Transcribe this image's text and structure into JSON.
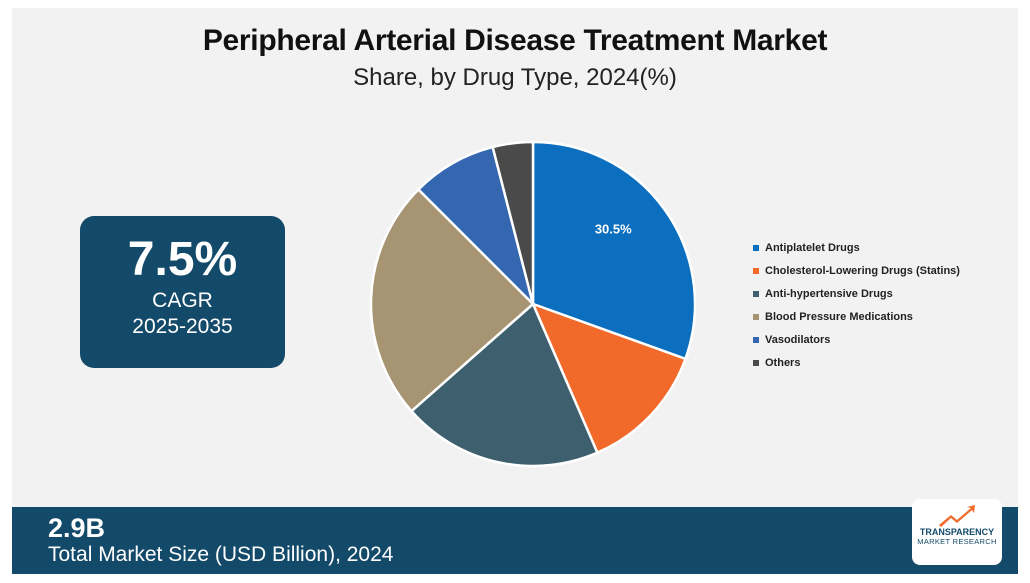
{
  "header": {
    "title": "Peripheral Arterial Disease Treatment Market",
    "subtitle": "Share, by Drug Type, 2024(%)"
  },
  "cagr": {
    "value": "7.5%",
    "label": "CAGR",
    "period": "2025-2035"
  },
  "footer": {
    "value": "2.9B",
    "label": "Total Market Size (USD Billion), 2024"
  },
  "logo": {
    "line1": "TRANSPARENCY",
    "line2": "MARKET RESEARCH"
  },
  "chart_data": {
    "type": "pie",
    "categories": [
      "Antiplatelet Drugs",
      "Cholesterol-Lowering Drugs (Statins)",
      "Anti-hypertensive Drugs",
      "Blood Pressure Medications",
      "Vasodilators",
      "Others"
    ],
    "values": [
      30.5,
      13.0,
      20.0,
      24.0,
      8.5,
      4.0
    ],
    "colors": [
      "#0c6ebf",
      "#f26a2a",
      "#3d5f6e",
      "#a69472",
      "#3467b0",
      "#4a4a4a"
    ],
    "data_labels": [
      "30.5%",
      "",
      "",
      "",
      "",
      ""
    ],
    "legend_position": "right"
  }
}
